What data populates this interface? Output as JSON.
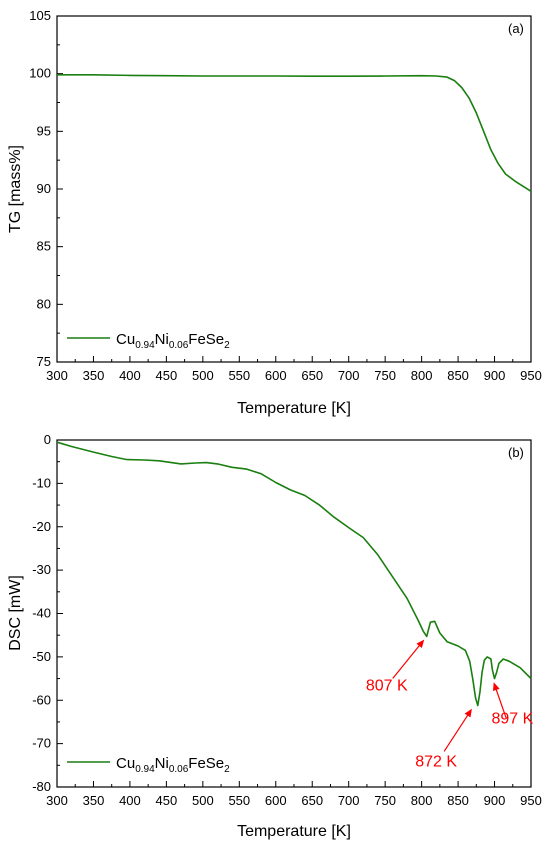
{
  "chart_data": [
    {
      "type": "line",
      "panel_label": "(a)",
      "xlabel": "Temperature [K]",
      "ylabel": "TG [mass%]",
      "xlim": [
        300,
        950
      ],
      "ylim": [
        75,
        105
      ],
      "xticks": [
        300,
        350,
        400,
        450,
        500,
        550,
        600,
        650,
        700,
        750,
        800,
        850,
        900,
        950
      ],
      "yticks": [
        75,
        80,
        85,
        90,
        95,
        100,
        105
      ],
      "grid": false,
      "legend_position": "bottom-left",
      "series": [
        {
          "name": "Cu0.94Ni0.06FeSe2",
          "legend_parts": {
            "base1": "Cu",
            "sub1": "0.94",
            "base2": "Ni",
            "sub2": "0.06",
            "base3": "FeSe",
            "sub3": "2"
          },
          "color": "#1a7f10",
          "x": [
            300,
            350,
            400,
            450,
            500,
            550,
            600,
            650,
            700,
            750,
            800,
            820,
            835,
            845,
            855,
            865,
            875,
            885,
            895,
            905,
            915,
            930,
            950
          ],
          "y": [
            99.9,
            99.9,
            99.85,
            99.82,
            99.8,
            99.8,
            99.8,
            99.78,
            99.78,
            99.8,
            99.82,
            99.8,
            99.7,
            99.4,
            98.8,
            97.9,
            96.6,
            95.0,
            93.4,
            92.2,
            91.3,
            90.6,
            89.8
          ]
        }
      ]
    },
    {
      "type": "line",
      "panel_label": "(b)",
      "xlabel": "Temperature [K]",
      "ylabel": "DSC [mW]",
      "xlim": [
        300,
        950
      ],
      "ylim": [
        -80,
        0
      ],
      "xticks": [
        300,
        350,
        400,
        450,
        500,
        550,
        600,
        650,
        700,
        750,
        800,
        850,
        900,
        950
      ],
      "yticks": [
        -80,
        -70,
        -60,
        -50,
        -40,
        -30,
        -20,
        -10,
        0
      ],
      "grid": false,
      "legend_position": "bottom-left",
      "series": [
        {
          "name": "Cu0.94Ni0.06FeSe2",
          "legend_parts": {
            "base1": "Cu",
            "sub1": "0.94",
            "base2": "Ni",
            "sub2": "0.06",
            "base3": "FeSe",
            "sub3": "2"
          },
          "color": "#1a7f10",
          "x": [
            300,
            320,
            350,
            375,
            395,
            420,
            440,
            470,
            490,
            505,
            520,
            540,
            560,
            580,
            600,
            620,
            640,
            660,
            680,
            700,
            720,
            740,
            760,
            780,
            795,
            802,
            807,
            812,
            818,
            825,
            835,
            850,
            860,
            866,
            870,
            874,
            877,
            880,
            883,
            886,
            890,
            895,
            897,
            900,
            903,
            906,
            912,
            920,
            935,
            950
          ],
          "y": [
            -0.5,
            -1.5,
            -2.8,
            -3.8,
            -4.5,
            -4.6,
            -4.8,
            -5.5,
            -5.3,
            -5.2,
            -5.5,
            -6.3,
            -6.7,
            -7.8,
            -9.8,
            -11.5,
            -12.8,
            -15,
            -17.8,
            -20.2,
            -22.5,
            -26.5,
            -31.5,
            -36.5,
            -41.5,
            -44,
            -45.3,
            -42,
            -41.8,
            -44.5,
            -46.5,
            -47.5,
            -48.5,
            -51,
            -55,
            -59.5,
            -61.2,
            -58,
            -53.5,
            -50.8,
            -50,
            -50.5,
            -53,
            -55,
            -53.5,
            -51.5,
            -50.5,
            -51,
            -52.5,
            -55
          ]
        }
      ],
      "annotations": [
        {
          "text": "807 K",
          "x": 807,
          "y": -45.3
        },
        {
          "text": "872 K",
          "x": 872,
          "y": -61.2
        },
        {
          "text": "897 K",
          "x": 897,
          "y": -55
        }
      ],
      "annotation_color": "#ff0000"
    }
  ]
}
